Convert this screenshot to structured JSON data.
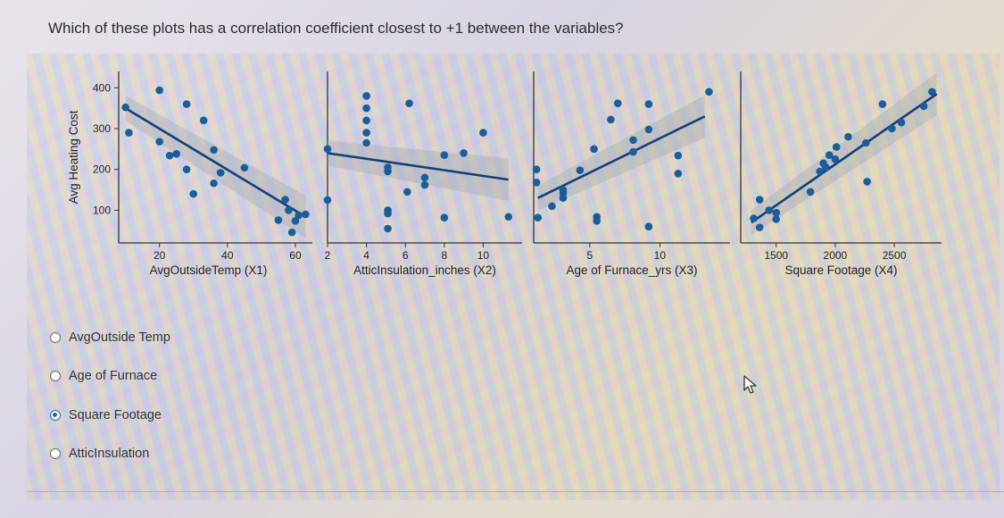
{
  "question": "Which of these plots has a correlation coefficient closest to +1 between the variables?",
  "ylabel_shared": "Avg Heating Cost",
  "colors": {
    "point": "#1a5d9a",
    "line": "#143f78",
    "band": "#9aa3ad"
  },
  "chart_data": [
    {
      "type": "scatter",
      "xlabel": "AvgOutsideTemp (X1)",
      "ylabel": "Avg Heating Cost",
      "xlim": [
        8,
        65
      ],
      "ylim": [
        20,
        440
      ],
      "xticks": [
        20,
        40,
        60
      ],
      "yticks": [
        100,
        200,
        300,
        400
      ],
      "points": [
        [
          10,
          352
        ],
        [
          11,
          290
        ],
        [
          20,
          394
        ],
        [
          20,
          268
        ],
        [
          23,
          234
        ],
        [
          25,
          238
        ],
        [
          28,
          360
        ],
        [
          28,
          200
        ],
        [
          30,
          140
        ],
        [
          33,
          320
        ],
        [
          36,
          248
        ],
        [
          36,
          166
        ],
        [
          38,
          192
        ],
        [
          45,
          204
        ],
        [
          55,
          76
        ],
        [
          57,
          126
        ],
        [
          58,
          100
        ],
        [
          59,
          46
        ],
        [
          60,
          74
        ],
        [
          61,
          88
        ],
        [
          63,
          90
        ]
      ],
      "fit": [
        [
          10,
          350
        ],
        [
          63,
          84
        ]
      ]
    },
    {
      "type": "scatter",
      "xlabel": "AtticInsulation_inches (X2)",
      "xlim": [
        2,
        12
      ],
      "ylim": [
        20,
        440
      ],
      "xticks": [
        2,
        4,
        6,
        8,
        10
      ],
      "points": [
        [
          2,
          250
        ],
        [
          2,
          125
        ],
        [
          4,
          380
        ],
        [
          4,
          350
        ],
        [
          4,
          320
        ],
        [
          4,
          290
        ],
        [
          4,
          265
        ],
        [
          5.1,
          205
        ],
        [
          5.1,
          195
        ],
        [
          5.1,
          100
        ],
        [
          5.1,
          92
        ],
        [
          5.1,
          55
        ],
        [
          6.1,
          145
        ],
        [
          6.2,
          362
        ],
        [
          7,
          180
        ],
        [
          7,
          162
        ],
        [
          8,
          235
        ],
        [
          8,
          82
        ],
        [
          9,
          240
        ],
        [
          10,
          290
        ],
        [
          11.3,
          84
        ]
      ],
      "fit": [
        [
          2,
          240
        ],
        [
          11.3,
          175
        ]
      ]
    },
    {
      "type": "scatter",
      "xlabel": "Age of Furnace_yrs (X3)",
      "xlim": [
        1,
        15
      ],
      "ylim": [
        20,
        440
      ],
      "xticks": [
        5,
        10
      ],
      "points": [
        [
          1.2,
          200
        ],
        [
          1.2,
          168
        ],
        [
          1.3,
          82
        ],
        [
          2.3,
          110
        ],
        [
          3.1,
          150
        ],
        [
          3.1,
          142
        ],
        [
          3.1,
          130
        ],
        [
          4.3,
          198
        ],
        [
          5.3,
          250
        ],
        [
          5.5,
          84
        ],
        [
          5.5,
          74
        ],
        [
          6.5,
          322
        ],
        [
          7,
          362
        ],
        [
          8.1,
          272
        ],
        [
          8.1,
          243
        ],
        [
          9.2,
          298
        ],
        [
          9.2,
          60
        ],
        [
          9.2,
          360
        ],
        [
          11.3,
          234
        ],
        [
          11.3,
          190
        ],
        [
          13.5,
          390
        ]
      ],
      "fit": [
        [
          1.3,
          130
        ],
        [
          13.2,
          330
        ]
      ]
    },
    {
      "type": "scatter",
      "xlabel": "Square Footage (X4)",
      "xlim": [
        1200,
        2900
      ],
      "ylim": [
        20,
        440
      ],
      "xticks": [
        1500,
        2000,
        2500
      ],
      "points": [
        [
          1310,
          80
        ],
        [
          1360,
          58
        ],
        [
          1360,
          126
        ],
        [
          1440,
          100
        ],
        [
          1500,
          78
        ],
        [
          1500,
          94
        ],
        [
          1790,
          145
        ],
        [
          1870,
          195
        ],
        [
          1900,
          215
        ],
        [
          1920,
          205
        ],
        [
          1950,
          235
        ],
        [
          2000,
          225
        ],
        [
          2010,
          255
        ],
        [
          2110,
          280
        ],
        [
          2260,
          265
        ],
        [
          2270,
          170
        ],
        [
          2400,
          360
        ],
        [
          2480,
          300
        ],
        [
          2560,
          315
        ],
        [
          2750,
          355
        ],
        [
          2820,
          390
        ]
      ],
      "fit": [
        [
          1290,
          70
        ],
        [
          2860,
          385
        ]
      ]
    }
  ],
  "options": [
    {
      "label": "AvgOutside Temp",
      "checked": false
    },
    {
      "label": "Age of Furnace",
      "checked": false
    },
    {
      "label": "Square Footage",
      "checked": true
    },
    {
      "label": "AtticInsulation",
      "checked": false
    }
  ]
}
